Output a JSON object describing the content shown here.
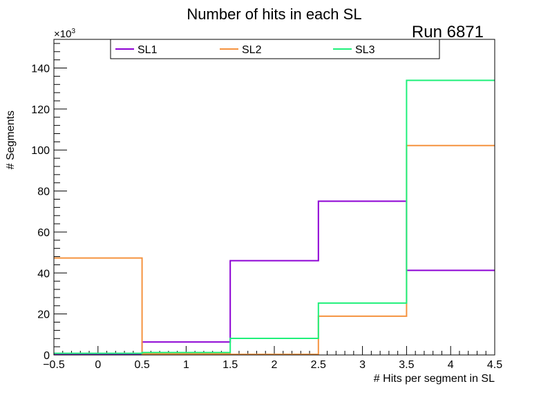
{
  "chart_data": {
    "type": "line",
    "title": "Number of hits in each SL",
    "run_label": "Run 6871",
    "xlabel": "# Hits per segment in SL",
    "ylabel": "# Segments",
    "y_exponent": "×10",
    "y_exponent_power": "3",
    "xlim": [
      -0.5,
      4.5
    ],
    "ylim": [
      0,
      154
    ],
    "x_ticks": [
      -0.5,
      0,
      0.5,
      1,
      1.5,
      2,
      2.5,
      3,
      3.5,
      4,
      4.5
    ],
    "x_tick_labels": [
      "−0.5",
      "0",
      "0.5",
      "1",
      "1.5",
      "2",
      "2.5",
      "3",
      "3.5",
      "4",
      "4.5"
    ],
    "y_ticks": [
      0,
      20,
      40,
      60,
      80,
      100,
      120,
      140
    ],
    "y_tick_labels": [
      "0",
      "20",
      "40",
      "60",
      "80",
      "100",
      "120",
      "140"
    ],
    "bin_edges": [
      -0.5,
      0.5,
      1.5,
      2.5,
      3.5,
      4.5
    ],
    "series": [
      {
        "name": "SL1",
        "color": "#8c00d4",
        "values": [
          0.5,
          6.3,
          46,
          75,
          41.3
        ]
      },
      {
        "name": "SL2",
        "color": "#f5923e",
        "values": [
          47.3,
          0.5,
          0.3,
          18.9,
          102.2
        ]
      },
      {
        "name": "SL3",
        "color": "#1ef07a",
        "values": [
          0.8,
          1.2,
          8.1,
          25.3,
          134
        ]
      }
    ]
  }
}
